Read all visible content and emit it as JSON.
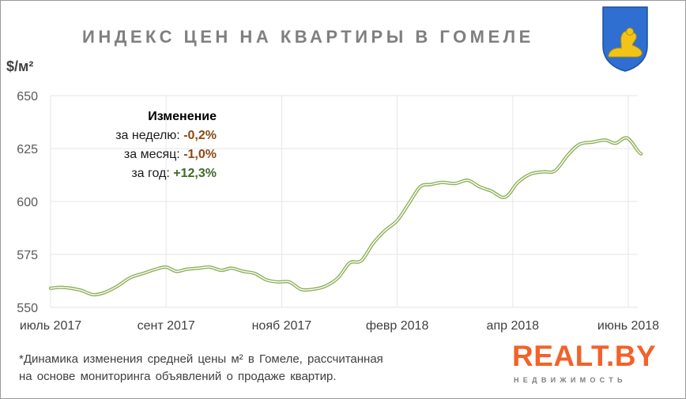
{
  "title": "ИНДЕКС ЦЕН НА КВАРТИРЫ В ГОМЕЛЕ",
  "unit": "$/м²",
  "changes": {
    "header": "Изменение",
    "week_label": "за неделю:",
    "week_value": "-0,2%",
    "month_label": "за месяц:",
    "month_value": "-1,0%",
    "year_label": "за год:",
    "year_value": "+12,3%"
  },
  "footnote": {
    "line1": "*Динамика изменения средней цены м² в Гомеле, рассчитанная",
    "line2": "на основе мониторинга объявлений о продаже квартир."
  },
  "logo": {
    "main": "REALT.BY",
    "sub": "НЕДВИЖИМОСТЬ"
  },
  "colors": {
    "line": "#8fb05a",
    "title": "#7f7f7f",
    "negative": "#8b4a14",
    "positive": "#3f6a2a",
    "logo": "#f2622a",
    "emblem_shield": "#2e6fd1",
    "emblem_figure": "#f2c418"
  },
  "emblem_icon": "gomel-coat-of-arms-icon",
  "chart_data": {
    "type": "line",
    "x_tick_labels": [
      "июль 2017",
      "сент 2017",
      "нояб 2017",
      "февр 2018",
      "апр 2018",
      "июнь 2018"
    ],
    "x_tick_positions": [
      0,
      9,
      18,
      27,
      36,
      45
    ],
    "y_ticks": [
      550,
      575,
      600,
      625,
      650
    ],
    "ylim": [
      550,
      650
    ],
    "xlim": [
      0,
      46
    ],
    "grid": true,
    "legend": "none",
    "series": [
      {
        "values": [
          559,
          559.5,
          559,
          558,
          556,
          557,
          560,
          564,
          566,
          568,
          569,
          567,
          568,
          568.5,
          569,
          567.5,
          568.5,
          567,
          566,
          563,
          562,
          562,
          558.5,
          558.5,
          560,
          564,
          571,
          572,
          580,
          586,
          591,
          599,
          607,
          608,
          609,
          608.5,
          610,
          607,
          605,
          602,
          609,
          613,
          614,
          614.5,
          622,
          627,
          628,
          629,
          627.5,
          630,
          623.5,
          622.5
        ],
        "x": [
          0,
          0.8,
          1.6,
          2.4,
          3.3,
          4.2,
          5.2,
          6.2,
          7.2,
          8.2,
          9.0,
          9.8,
          10.6,
          11.5,
          12.4,
          13.3,
          14.1,
          15.0,
          15.9,
          16.8,
          17.7,
          18.6,
          19.5,
          20.4,
          21.4,
          22.4,
          23.3,
          24.2,
          25.1,
          26.0,
          27.0,
          27.9,
          28.8,
          29.6,
          30.5,
          31.5,
          32.5,
          33.4,
          34.3,
          35.4,
          36.4,
          37.4,
          38.4,
          39.3,
          40.3,
          41.2,
          42.2,
          43.2,
          44.0,
          44.9,
          45.8,
          46.0
        ]
      }
    ]
  }
}
